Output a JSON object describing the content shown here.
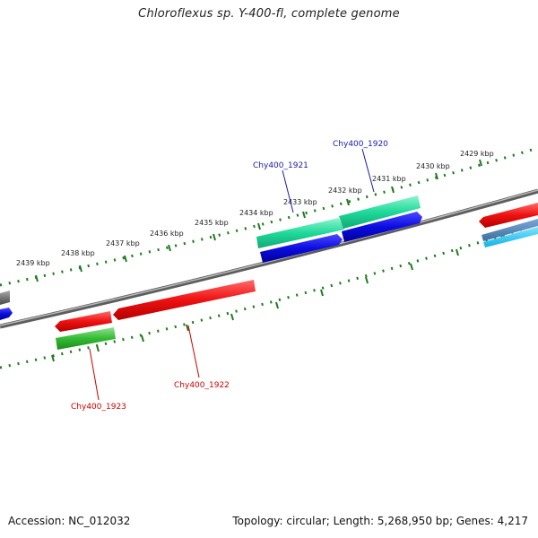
{
  "header": {
    "title": "Chloroflexus sp. Y-400-fl, complete genome"
  },
  "footer": {
    "accession": "Accession: NC_012032",
    "summary": "Topology: circular; Length: 5,268,950 bp; Genes: 4,217"
  },
  "scale": {
    "tick_labels": [
      "2439 kbp",
      "2438 kbp",
      "2437 kbp",
      "2436 kbp",
      "2435 kbp",
      "2434 kbp",
      "2433 kbp",
      "2432 kbp",
      "2431 kbp",
      "2430 kbp",
      "2429 kbp"
    ]
  },
  "gene_labels": {
    "chy1921": "Chy400_1921",
    "chy1920": "Chy400_1920",
    "chy1922": "Chy400_1922",
    "chy1923": "Chy400_1923"
  },
  "colors": {
    "forward_label": "#1a1aa8",
    "reverse_label": "#cc0000",
    "scale_ticks": "#1f7a1f",
    "backbone": "#7a7a7a",
    "red_feature": "#ee1111",
    "blue_feature": "#0c0ce0",
    "teal_feature": "#1ed99a",
    "green_feature": "#33bb33"
  }
}
